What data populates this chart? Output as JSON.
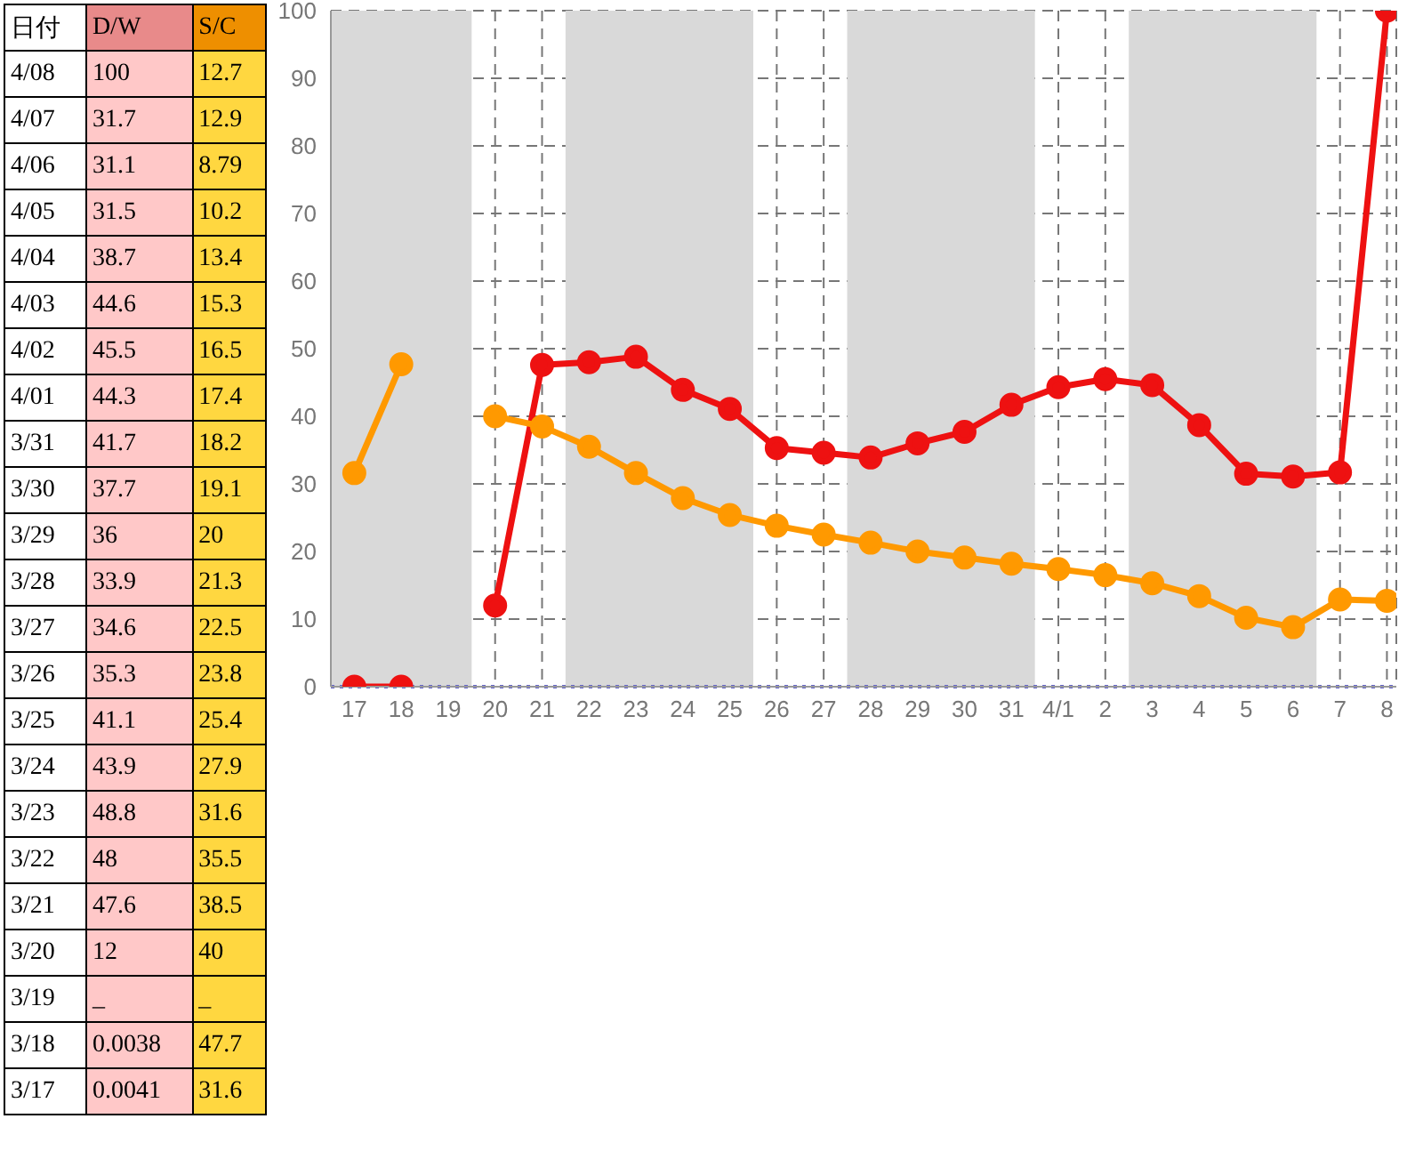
{
  "chart_data": [
    {
      "type": "other",
      "categories": [
        "日付",
        "D/W",
        "S/C"
      ],
      "annotations": [
        "4/08",
        "100",
        "12.7",
        "4/07",
        "31.7",
        "12.9",
        "4/06",
        "31.1",
        "8.79",
        "4/05",
        "31.5",
        "10.2",
        "4/04",
        "38.7",
        "13.4",
        "4/03",
        "44.6",
        "15.3",
        "4/02",
        "45.5",
        "16.5",
        "4/01",
        "44.3",
        "17.4",
        "3/31",
        "41.7",
        "18.2",
        "3/30",
        "37.7",
        "19.1",
        "3/29",
        "36",
        "20",
        "3/28",
        "33.9",
        "21.3",
        "3/27",
        "34.6",
        "22.5",
        "3/26",
        "35.3",
        "23.8",
        "3/25",
        "41.1",
        "25.4",
        "3/24",
        "43.9",
        "27.9",
        "3/23",
        "48.8",
        "31.6",
        "3/22",
        "48",
        "35.5",
        "3/21",
        "47.6",
        "38.5",
        "3/20",
        "12",
        "40",
        "3/19",
        "_",
        "_",
        "3/18",
        "0.0038",
        "47.7",
        "3/17",
        "0.0041",
        "31.6"
      ]
    },
    {
      "type": "line",
      "categories": [
        "17",
        "18",
        "19",
        "20",
        "21",
        "22",
        "23",
        "24",
        "25",
        "26",
        "27",
        "28",
        "29",
        "30",
        "31",
        "4/1",
        "2",
        "3",
        "4",
        "5",
        "6",
        "7",
        "8"
      ],
      "series": [
        {
          "color": "#ee1111",
          "values": [
            0,
            0,
            null,
            12,
            47.6,
            48,
            48.8,
            43.9,
            41.1,
            35.3,
            34.6,
            33.9,
            36,
            37.7,
            41.7,
            44.3,
            45.5,
            44.6,
            38.7,
            31.5,
            31.1,
            31.7,
            100
          ]
        },
        {
          "color": "#ff9900",
          "values": [
            31.6,
            47.7,
            null,
            40,
            38.5,
            35.5,
            31.6,
            27.9,
            25.4,
            23.8,
            22.5,
            21.3,
            20,
            19.1,
            18.2,
            17.4,
            16.5,
            15.3,
            13.4,
            10.2,
            8.8,
            12.9,
            12.7
          ]
        }
      ],
      "ylim": [
        0,
        100
      ],
      "yticks": [
        0,
        10,
        20,
        30,
        40,
        50,
        60,
        70,
        80,
        90,
        100
      ],
      "grid": true,
      "marker": "circle",
      "line_style": "solid",
      "ref_lines": [
        {
          "axis": "y",
          "value": 0,
          "color": "#6666cc",
          "line_style": "dotted"
        }
      ],
      "bands": [
        {
          "axis": "x",
          "from": "17",
          "to": "19",
          "color": "#d9d9d9"
        },
        {
          "axis": "x",
          "from": "22",
          "to": "25",
          "color": "#d9d9d9"
        },
        {
          "axis": "x",
          "from": "28",
          "to": "31",
          "color": "#d9d9d9"
        },
        {
          "axis": "x",
          "from": "3",
          "to": "6",
          "color": "#d9d9d9"
        }
      ]
    }
  ]
}
